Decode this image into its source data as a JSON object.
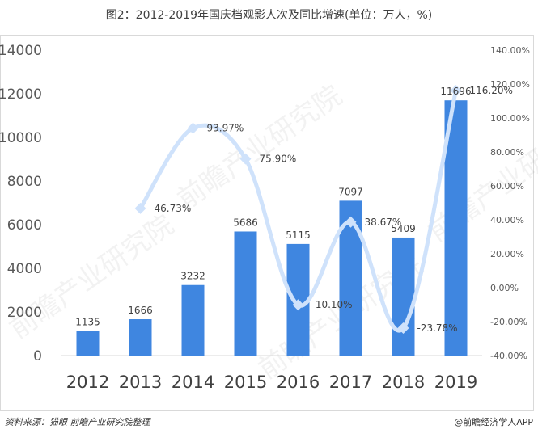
{
  "title": "图2：2012-2019年国庆档观影人次及同比增速(单位：万人，%)",
  "footer": {
    "source": "资料来源：猫眼 前瞻产业研究院整理",
    "brand": "@前瞻经济学人APP"
  },
  "watermark": "前瞻产业研究院",
  "chart_data": {
    "type": "bar",
    "categories": [
      "2012",
      "2013",
      "2014",
      "2015",
      "2016",
      "2017",
      "2018",
      "2019"
    ],
    "series": [
      {
        "type": "bar",
        "values": [
          1135,
          1666,
          3232,
          5686,
          5115,
          7097,
          5409,
          11696
        ],
        "color": "#3f86e0"
      },
      {
        "type": "line",
        "values": [
          null,
          46.73,
          93.97,
          75.9,
          -10.1,
          38.67,
          -23.78,
          116.2
        ],
        "color": "#cfe2fb"
      }
    ],
    "bar_labels": [
      "1135",
      "1666",
      "3232",
      "5686",
      "5115",
      "7097",
      "5409",
      "11696"
    ],
    "line_labels": [
      "",
      "46.73%",
      "93.97%",
      "75.90%",
      "-10.10%",
      "38.67%",
      "-23.78%",
      "116.20%"
    ],
    "y_left": {
      "min": 0,
      "max": 14000,
      "ticks": [
        0,
        2000,
        4000,
        6000,
        8000,
        10000,
        12000,
        14000
      ]
    },
    "y_right": {
      "min": -40,
      "max": 140,
      "ticks": [
        -40,
        -20,
        0,
        20,
        40,
        60,
        80,
        100,
        120,
        140
      ],
      "tick_labels": [
        "-40.00%",
        "-20.00%",
        "0.00%",
        "20.00%",
        "40.00%",
        "60.00%",
        "80.00%",
        "100.00%",
        "120.00%",
        "140.00%"
      ]
    },
    "grid": false
  }
}
